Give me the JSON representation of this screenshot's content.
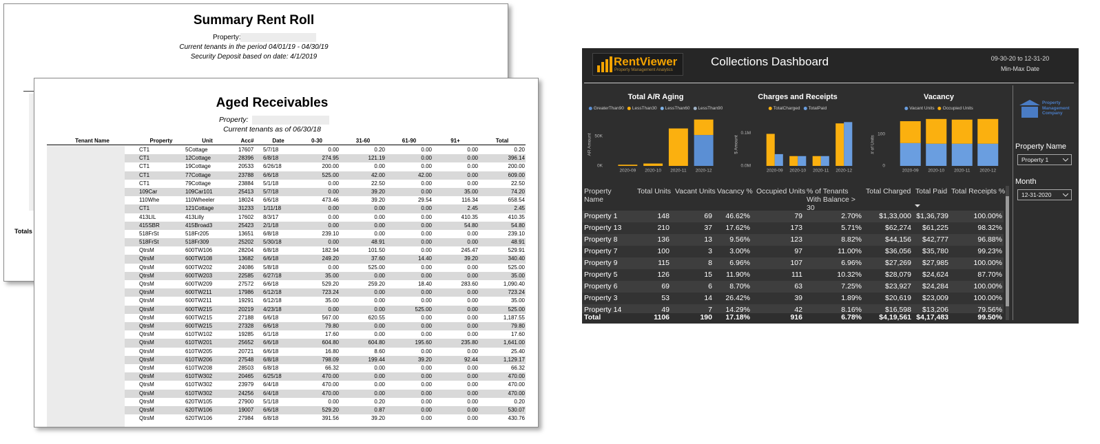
{
  "rent_roll": {
    "title": "Summary Rent Roll",
    "property_label": "Property:",
    "period": "Current tenants in the period 04/01/19 - 04/30/19",
    "deposit": "Security Deposit based on date: 4/1/2019",
    "totals": "Totals f"
  },
  "aged_receivables": {
    "title": "Aged Receivables",
    "property_label": "Property:",
    "as_of": "Current tenants as of 06/30/18",
    "columns": [
      "Tenant Name",
      "Property",
      "Unit",
      "Acc#",
      "Date",
      "0-30",
      "31-60",
      "61-90",
      "91+",
      "Total"
    ],
    "rows": [
      [
        "CT1",
        "5Cottage",
        "17607",
        "5/7/18",
        "0.00",
        "0.20",
        "0.00",
        "0.00",
        "0.20"
      ],
      [
        "CT1",
        "12Cottage",
        "28396",
        "6/8/18",
        "274.95",
        "121.19",
        "0.00",
        "0.00",
        "396.14"
      ],
      [
        "CT1",
        "19Cottage",
        "20533",
        "6/26/18",
        "200.00",
        "0.00",
        "0.00",
        "0.00",
        "200.00"
      ],
      [
        "CT1",
        "77Cottage",
        "23788",
        "6/6/18",
        "525.00",
        "42.00",
        "42.00",
        "0.00",
        "609.00"
      ],
      [
        "CT1",
        "79Cottage",
        "23884",
        "5/1/18",
        "0.00",
        "22.50",
        "0.00",
        "0.00",
        "22.50"
      ],
      [
        "109Car",
        "109Car101",
        "25413",
        "5/7/18",
        "0.00",
        "39.20",
        "0.00",
        "35.00",
        "74.20"
      ],
      [
        "110Whe",
        "110Wheeler",
        "18024",
        "6/6/18",
        "473.46",
        "39.20",
        "29.54",
        "116.34",
        "658.54"
      ],
      [
        "CT1",
        "121Cottage",
        "31233",
        "1/11/18",
        "0.00",
        "0.00",
        "0.00",
        "2.45",
        "2.45"
      ],
      [
        "413LIL",
        "413Lilly",
        "17602",
        "8/3/17",
        "0.00",
        "0.00",
        "0.00",
        "410.35",
        "410.35"
      ],
      [
        "415SBR",
        "415Broad3",
        "25423",
        "2/1/18",
        "0.00",
        "0.00",
        "0.00",
        "54.80",
        "54.80"
      ],
      [
        "518FrSt",
        "518Fr205",
        "13651",
        "6/8/18",
        "239.10",
        "0.00",
        "0.00",
        "0.00",
        "239.10"
      ],
      [
        "518FrSt",
        "518Fr309",
        "25202",
        "5/30/18",
        "0.00",
        "48.91",
        "0.00",
        "0.00",
        "48.91"
      ],
      [
        "QtrsM",
        "600TW106",
        "28204",
        "6/8/18",
        "182.94",
        "101.50",
        "0.00",
        "245.47",
        "529.91"
      ],
      [
        "QtrsM",
        "600TW108",
        "13682",
        "6/6/18",
        "249.20",
        "37.60",
        "14.40",
        "39.20",
        "340.40"
      ],
      [
        "QtrsM",
        "600TW202",
        "24086",
        "5/8/18",
        "0.00",
        "525.00",
        "0.00",
        "0.00",
        "525.00"
      ],
      [
        "QtrsM",
        "600TW203",
        "22585",
        "6/27/18",
        "35.00",
        "0.00",
        "0.00",
        "0.00",
        "35.00"
      ],
      [
        "QtrsM",
        "600TW209",
        "27572",
        "6/6/18",
        "529.20",
        "259.20",
        "18.40",
        "283.60",
        "1,090.40"
      ],
      [
        "QtrsM",
        "600TW211",
        "17986",
        "6/12/18",
        "723.24",
        "0.00",
        "0.00",
        "0.00",
        "723.24"
      ],
      [
        "QtrsM",
        "600TW211",
        "19291",
        "6/12/18",
        "35.00",
        "0.00",
        "0.00",
        "0.00",
        "35.00"
      ],
      [
        "QtrsM",
        "600TW215",
        "20219",
        "4/23/18",
        "0.00",
        "0.00",
        "525.00",
        "0.00",
        "525.00"
      ],
      [
        "QtrsM",
        "600TW215",
        "27188",
        "6/6/18",
        "567.00",
        "620.55",
        "0.00",
        "0.00",
        "1,187.55"
      ],
      [
        "QtrsM",
        "600TW215",
        "27328",
        "6/6/18",
        "79.80",
        "0.00",
        "0.00",
        "0.00",
        "79.80"
      ],
      [
        "QtrsM",
        "610TW102",
        "19285",
        "6/1/18",
        "17.60",
        "0.00",
        "0.00",
        "0.00",
        "17.60"
      ],
      [
        "QtrsM",
        "610TW201",
        "25652",
        "6/6/18",
        "604.80",
        "604.80",
        "195.60",
        "235.80",
        "1,641.00"
      ],
      [
        "QtrsM",
        "610TW205",
        "20721",
        "6/6/18",
        "16.80",
        "8.60",
        "0.00",
        "0.00",
        "25.40"
      ],
      [
        "QtrsM",
        "610TW206",
        "27548",
        "6/8/18",
        "798.09",
        "199.44",
        "39.20",
        "92.44",
        "1,129.17"
      ],
      [
        "QtrsM",
        "610TW208",
        "28503",
        "6/8/18",
        "66.32",
        "0.00",
        "0.00",
        "0.00",
        "66.32"
      ],
      [
        "QtrsM",
        "610TW302",
        "20465",
        "6/25/18",
        "470.00",
        "0.00",
        "0.00",
        "0.00",
        "470.00"
      ],
      [
        "QtrsM",
        "610TW302",
        "23979",
        "6/4/18",
        "470.00",
        "0.00",
        "0.00",
        "0.00",
        "470.00"
      ],
      [
        "QtrsM",
        "610TW302",
        "24256",
        "6/4/18",
        "470.00",
        "0.00",
        "0.00",
        "0.00",
        "470.00"
      ],
      [
        "QtrsM",
        "620TW105",
        "27900",
        "5/1/18",
        "0.00",
        "0.20",
        "0.00",
        "0.00",
        "0.20"
      ],
      [
        "QtrsM",
        "620TW106",
        "19007",
        "6/6/18",
        "529.20",
        "0.87",
        "0.00",
        "0.00",
        "530.07"
      ],
      [
        "QtrsM",
        "620TW106",
        "27984",
        "6/8/18",
        "391.56",
        "39.20",
        "0.00",
        "0.00",
        "430.76"
      ]
    ]
  },
  "dashboard": {
    "logo": "RentViewer",
    "logo_tagline": "Property Management Analytics",
    "title": "Collections Dashboard",
    "date_range": "09-30-20 to 12-31-20",
    "date_caption": "Min-Max Date",
    "company": "Property Management Company",
    "filters": [
      {
        "label": "Property Name",
        "value": "Property 1"
      },
      {
        "label": "Month",
        "value": "12-31-2020"
      }
    ],
    "charts": [
      {
        "type": "stacked_bar",
        "title": "Total A/R Aging",
        "y_label": "AR Amount",
        "categories": [
          "2020-09",
          "2020-10",
          "2020-11",
          "2020-12"
        ],
        "series": [
          {
            "name": "GreaterThan90",
            "color": "#5b8fd4",
            "values": [
              0,
              0,
              0,
              52000
            ]
          },
          {
            "name": "LessThan30",
            "color": "#fbb00f",
            "values": [
              2000,
              4000,
              63000,
              26000
            ]
          },
          {
            "name": "LessThan60",
            "color": "#7fb3e8",
            "values": [
              0,
              0,
              0,
              0
            ]
          },
          {
            "name": "LessThan90",
            "color": "#9fb2c6",
            "values": [
              0,
              0,
              0,
              0
            ]
          }
        ],
        "ylim": [
          0,
          88000
        ],
        "yticks": [
          {
            "value": 0,
            "label": "0K"
          },
          {
            "value": 50000,
            "label": "50K"
          }
        ]
      },
      {
        "type": "bar",
        "title": "Charges and Receipts",
        "y_label": "$ Amount",
        "categories": [
          "2020-09",
          "2020-10",
          "2020-11",
          "2020-12"
        ],
        "series": [
          {
            "name": "TotalCharged",
            "color": "#fbb00f",
            "values": [
              98000,
              30000,
              30000,
              130000
            ]
          },
          {
            "name": "TotalPaid",
            "color": "#6a9ee0",
            "values": [
              36000,
              30000,
              30000,
              134000
            ]
          }
        ],
        "ylim": [
          0,
          160000
        ],
        "yticks": [
          {
            "value": 0,
            "label": "0.0M"
          },
          {
            "value": 100000,
            "label": "0.1M"
          }
        ]
      },
      {
        "type": "stacked_bar",
        "title": "Vacancy",
        "y_label": "# of Units",
        "categories": [
          "2020-09",
          "2020-10",
          "2020-11",
          "2020-12"
        ],
        "series": [
          {
            "name": "Vacant Units",
            "color": "#6a9ee0",
            "values": [
              72,
              70,
              70,
              70
            ]
          },
          {
            "name": "Occupied Units",
            "color": "#fbb00f",
            "values": [
              69,
              78,
              76,
              78
            ]
          }
        ],
        "ylim": [
          0,
          165
        ],
        "yticks": [
          0,
          100
        ]
      }
    ],
    "table": {
      "columns": [
        "Property Name",
        "Total Units",
        "Vacant Units",
        "Vacancy %",
        "Occupied Units",
        "% of Tenants With Balance > 30",
        "Total Charged",
        "Total Paid",
        "Total Receipts %"
      ],
      "rows": [
        [
          "Property 1",
          "148",
          "69",
          "46.62%",
          "79",
          "2.70%",
          "$1,33,000",
          "$1,36,739",
          "100.00%"
        ],
        [
          "Property 13",
          "210",
          "37",
          "17.62%",
          "173",
          "5.71%",
          "$62,274",
          "$61,225",
          "98.32%"
        ],
        [
          "Property 8",
          "136",
          "13",
          "9.56%",
          "123",
          "8.82%",
          "$44,156",
          "$42,777",
          "96.88%"
        ],
        [
          "Property 7",
          "100",
          "3",
          "3.00%",
          "97",
          "11.00%",
          "$36,056",
          "$35,780",
          "99.23%"
        ],
        [
          "Property 9",
          "115",
          "8",
          "6.96%",
          "107",
          "6.96%",
          "$27,269",
          "$27,985",
          "100.00%"
        ],
        [
          "Property 5",
          "126",
          "15",
          "11.90%",
          "111",
          "10.32%",
          "$28,079",
          "$24,624",
          "87.70%"
        ],
        [
          "Property 6",
          "69",
          "6",
          "8.70%",
          "63",
          "7.25%",
          "$23,927",
          "$24,284",
          "100.00%"
        ],
        [
          "Property 3",
          "53",
          "14",
          "26.42%",
          "39",
          "1.89%",
          "$20,619",
          "$23,009",
          "100.00%"
        ],
        [
          "Property 14",
          "49",
          "7",
          "14.29%",
          "42",
          "8.16%",
          "$16,598",
          "$13,206",
          "79.56%"
        ]
      ],
      "total": [
        "Total",
        "1106",
        "190",
        "17.18%",
        "916",
        "6.78%",
        "$4,19,561",
        "$4,17,483",
        "99.50%"
      ]
    }
  }
}
